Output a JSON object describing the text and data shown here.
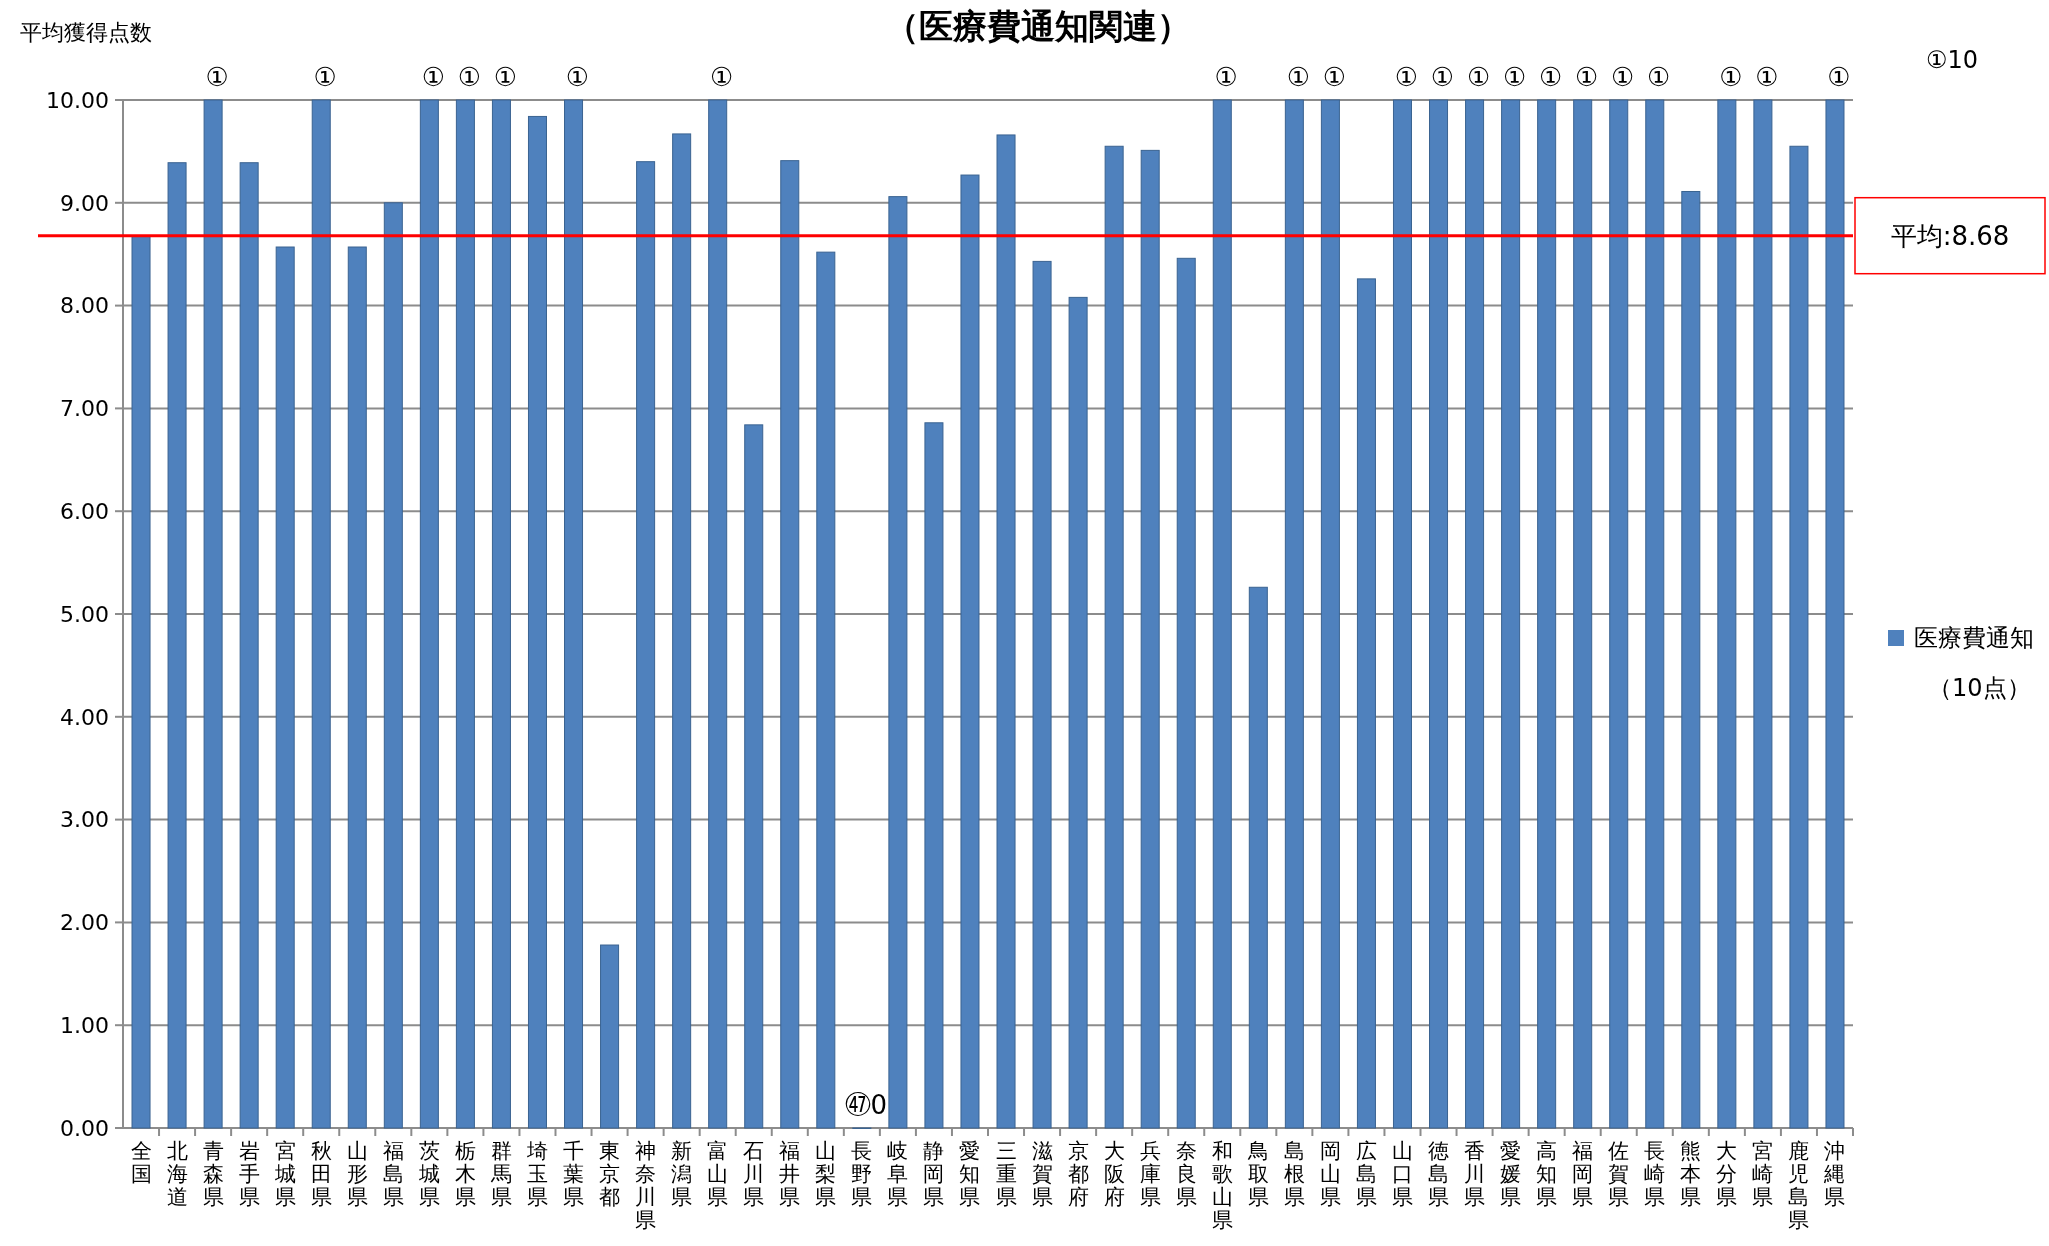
{
  "chart_data": {
    "type": "bar",
    "title": "（医療費通知関連）",
    "ylabel": "平均獲得点数",
    "categories": [
      "全国",
      "北海道",
      "青森県",
      "岩手県",
      "宮城県",
      "秋田県",
      "山形県",
      "福島県",
      "茨城県",
      "栃木県",
      "群馬県",
      "埼玉県",
      "千葉県",
      "東京都",
      "神奈川県",
      "新潟県",
      "富山県",
      "石川県",
      "福井県",
      "山梨県",
      "長野県",
      "岐阜県",
      "静岡県",
      "愛知県",
      "三重県",
      "滋賀県",
      "京都府",
      "大阪府",
      "兵庫県",
      "奈良県",
      "和歌山県",
      "鳥取県",
      "島根県",
      "岡山県",
      "広島県",
      "山口県",
      "徳島県",
      "香川県",
      "愛媛県",
      "高知県",
      "福岡県",
      "佐賀県",
      "長崎県",
      "熊本県",
      "大分県",
      "宮崎県",
      "鹿児島県",
      "沖縄県"
    ],
    "series": [
      {
        "name": "医療費通知（10点）",
        "color": "#4f81bd",
        "values": [
          8.68,
          9.39,
          10,
          9.39,
          8.57,
          10,
          8.57,
          9.0,
          10,
          10,
          10,
          9.84,
          10,
          1.78,
          9.4,
          9.67,
          10,
          6.84,
          9.41,
          8.52,
          0,
          9.06,
          6.86,
          9.27,
          9.66,
          8.43,
          8.08,
          9.55,
          9.51,
          8.46,
          10,
          5.26,
          10,
          10,
          8.26,
          10,
          10,
          10,
          10,
          10,
          10,
          10,
          10,
          9.11,
          10,
          10,
          9.55,
          10
        ]
      }
    ],
    "ylim": [
      0,
      10
    ],
    "yticks": [
      {
        "value": 0,
        "label": "0.00"
      },
      {
        "value": 1,
        "label": "1.00"
      },
      {
        "value": 2,
        "label": "2.00"
      },
      {
        "value": 3,
        "label": "3.00"
      },
      {
        "value": 4,
        "label": "4.00"
      },
      {
        "value": 5,
        "label": "5.00"
      },
      {
        "value": 6,
        "label": "6.00"
      },
      {
        "value": 7,
        "label": "7.00"
      },
      {
        "value": 8,
        "label": "8.00"
      },
      {
        "value": 9,
        "label": "9.00"
      },
      {
        "value": 10,
        "label": "10.00"
      }
    ],
    "grid": "y",
    "legend": "right",
    "ref_lines": [
      {
        "axis": "y",
        "value": 8.68,
        "label": "平均:8.68",
        "color": "#ff0000"
      }
    ],
    "annotations": [
      {
        "text": "①",
        "x": "青森県",
        "y": 10
      },
      {
        "text": "①",
        "x": "秋田県",
        "y": 10
      },
      {
        "text": "①",
        "x": "茨城県",
        "y": 10
      },
      {
        "text": "①",
        "x": "栃木県",
        "y": 10
      },
      {
        "text": "①",
        "x": "群馬県",
        "y": 10
      },
      {
        "text": "①",
        "x": "千葉県",
        "y": 10
      },
      {
        "text": "①",
        "x": "富山県",
        "y": 10
      },
      {
        "text": "①",
        "x": "和歌山県",
        "y": 10
      },
      {
        "text": "①",
        "x": "島根県",
        "y": 10
      },
      {
        "text": "①",
        "x": "岡山県",
        "y": 10
      },
      {
        "text": "①",
        "x": "山口県",
        "y": 10
      },
      {
        "text": "①",
        "x": "徳島県",
        "y": 10
      },
      {
        "text": "①",
        "x": "香川県",
        "y": 10
      },
      {
        "text": "①",
        "x": "愛媛県",
        "y": 10
      },
      {
        "text": "①",
        "x": "高知県",
        "y": 10
      },
      {
        "text": "①",
        "x": "福岡県",
        "y": 10
      },
      {
        "text": "①",
        "x": "佐賀県",
        "y": 10
      },
      {
        "text": "①",
        "x": "長崎県",
        "y": 10
      },
      {
        "text": "①",
        "x": "大分県",
        "y": 10
      },
      {
        "text": "①",
        "x": "宮崎県",
        "y": 10
      },
      {
        "text": "①",
        "x": "沖縄県",
        "y": 10
      },
      {
        "text": "㊼0",
        "x": "長野県",
        "y": 0
      },
      "①10"
    ]
  }
}
